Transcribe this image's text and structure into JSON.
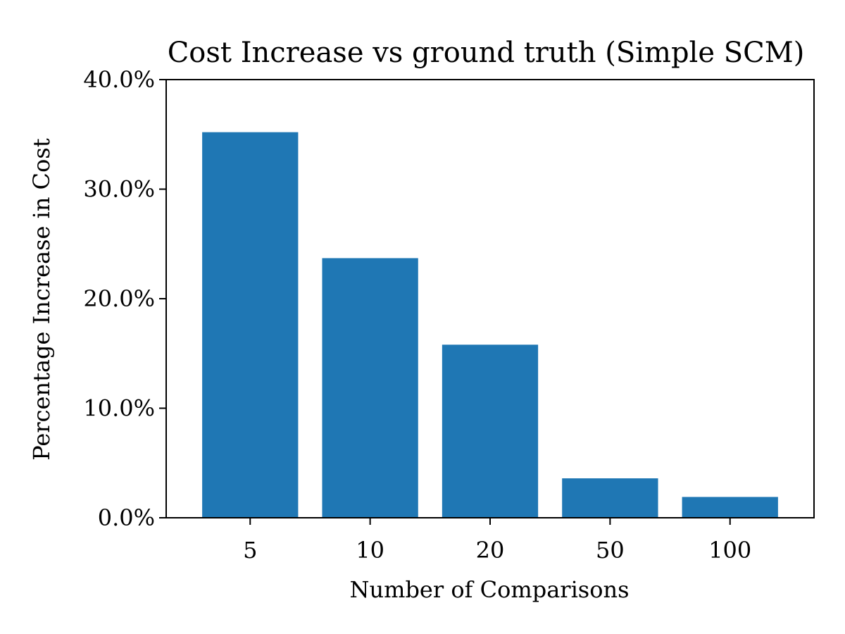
{
  "chart_data": {
    "type": "bar",
    "title": "Cost Increase vs ground truth (Simple SCM)",
    "xlabel": "Number of Comparisons",
    "ylabel": "Percentage Increase in Cost",
    "categories": [
      "5",
      "10",
      "20",
      "50",
      "100"
    ],
    "values": [
      35.2,
      23.7,
      15.8,
      3.6,
      1.9
    ],
    "ylim": [
      0,
      40
    ],
    "yticks": [
      0,
      10,
      20,
      30,
      40
    ],
    "ytick_labels": [
      "0.0%",
      "10.0%",
      "20.0%",
      "30.0%",
      "40.0%"
    ],
    "bar_color": "#1f77b4",
    "grid": false
  }
}
